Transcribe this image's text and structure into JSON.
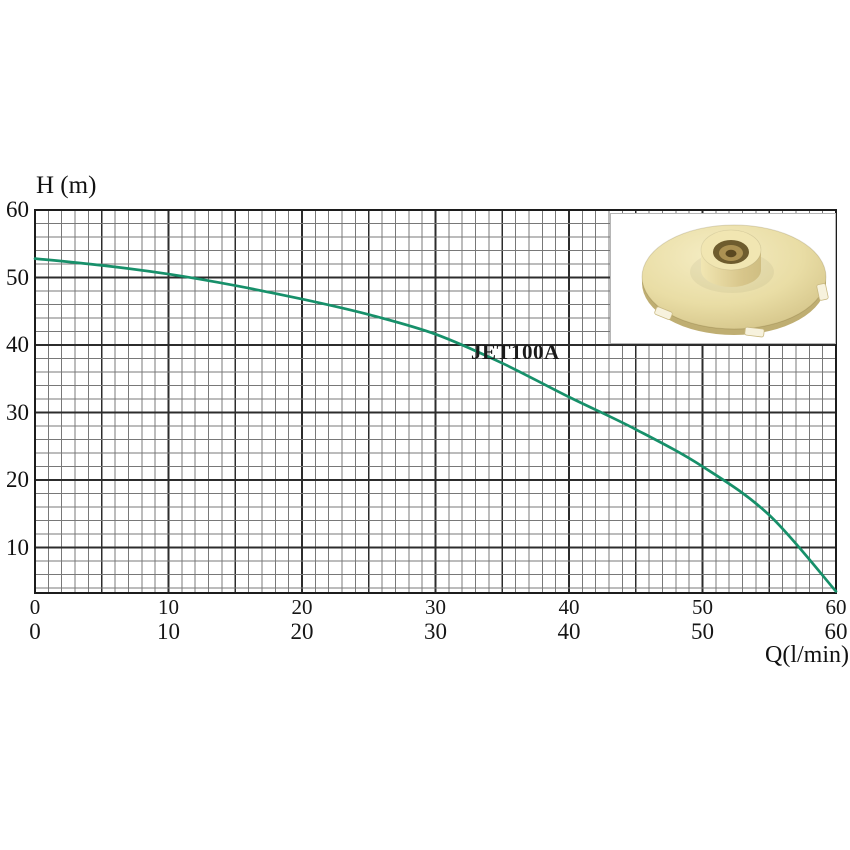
{
  "chart_data": {
    "type": "line",
    "title": "",
    "xlabel": "Q(l/min)",
    "ylabel": "H (m)",
    "curve_label": "JET100A",
    "series": [
      {
        "name": "JET100A",
        "x": [
          0,
          5,
          10,
          15,
          20,
          25,
          30,
          35,
          40,
          45,
          50,
          55,
          60
        ],
        "values": [
          52.8,
          51.8,
          50.5,
          48.8,
          46.8,
          44.5,
          41.6,
          37.3,
          32.3,
          27.5,
          22.0,
          14.8,
          3.5
        ],
        "color": "#17906a"
      }
    ],
    "xlim": [
      0,
      60
    ],
    "ylim": [
      0,
      60
    ],
    "x_ticks": {
      "row1": [
        "0",
        "10",
        "20",
        "30",
        "40",
        "50",
        "60"
      ],
      "row2": [
        "0",
        "10",
        "20",
        "30",
        "40",
        "50",
        "60"
      ],
      "values": [
        0,
        10,
        20,
        30,
        40,
        50,
        60
      ]
    },
    "y_ticks": {
      "labels": [
        "60",
        "50",
        "40",
        "30",
        "20",
        "10"
      ],
      "values": [
        60,
        50,
        40,
        30,
        20,
        10
      ]
    },
    "grid": {
      "on": true,
      "minor_x_step": 1,
      "major_x_step": 5,
      "minor_y_step": 2,
      "major_y_step": 10,
      "minor_color": "#787878",
      "major_color": "#2c2c2c",
      "axis_color": "#1c1c1c"
    },
    "legend": "none"
  },
  "inset": {
    "background": "#ffffff",
    "border_color": "#b6b6b6",
    "impeller": {
      "body_light": "#f5edc4",
      "body_mid": "#e9dda5",
      "body_dark": "#cfbe82",
      "rim_shadow": "#bfae72",
      "hub_light": "#f1e6b2",
      "hub_dark": "#d7c58a",
      "hole_dark": "#6e5c2e",
      "brass": "#ab9152",
      "brass_dark": "#5a4820",
      "notch_fill": "#f7f2dd",
      "notch_edge": "#c9b982"
    }
  }
}
